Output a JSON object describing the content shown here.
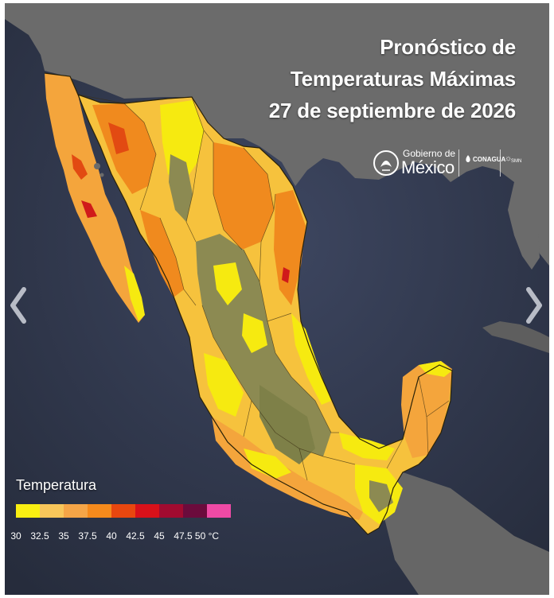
{
  "title": {
    "line1": "Pronóstico de",
    "line2": "Temperaturas Máximas",
    "line3": "27 de septiembre de 2026"
  },
  "logos": {
    "gobierno_small": "Gobierno de",
    "gobierno_big": "México",
    "conagua": "CONAGUA",
    "smn": "SMN"
  },
  "legend": {
    "title": "Temperatura",
    "unit": "°C",
    "ticks": [
      "30",
      "32.5",
      "35",
      "37.5",
      "40",
      "42.5",
      "45",
      "47.5",
      "50"
    ],
    "colors": [
      "#f9ef12",
      "#f8c65a",
      "#f5a547",
      "#f58a1c",
      "#e8470f",
      "#d8111a",
      "#a10b30",
      "#6b0b3c",
      "#ef4aa5"
    ]
  },
  "map_colors": {
    "ocean": "#343d52",
    "land_us": "#6e6e6e",
    "t30": "#f6ea10",
    "t32": "#f6c23d",
    "t35": "#f4a53c",
    "t37": "#f08a1e",
    "t40": "#e24a12",
    "t42": "#d01a1a",
    "highland": "#8c8a52"
  },
  "icons": {
    "prev": "chevron-left-icon",
    "next": "chevron-right-icon",
    "seal": "eagle-seal-icon"
  }
}
